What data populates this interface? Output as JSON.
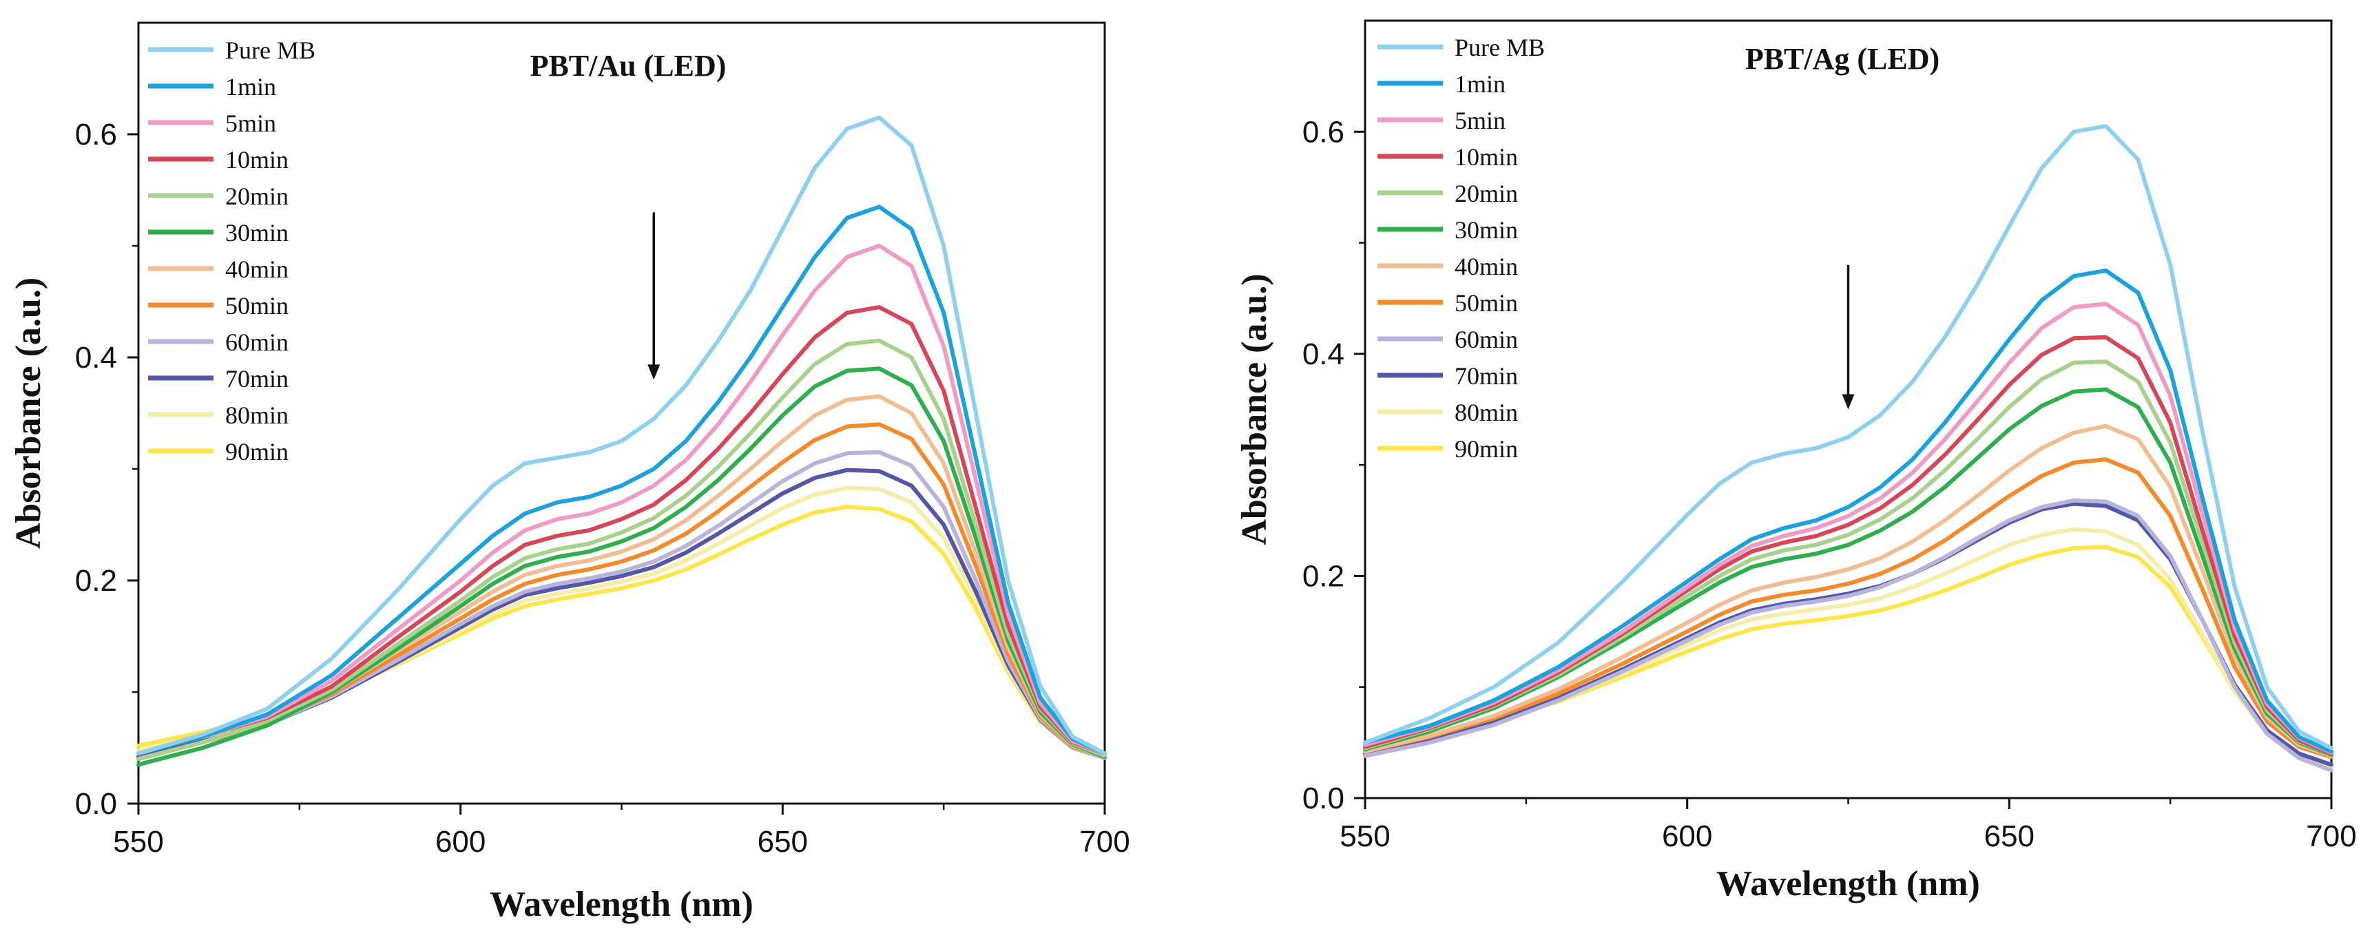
{
  "chart_data": [
    {
      "type": "line",
      "title": "PBT/Au (LED)",
      "xlabel": "Wavelength (nm)",
      "ylabel": "Absorbance (a.u.)",
      "xlim": [
        550,
        700
      ],
      "ylim": [
        0,
        0.7
      ],
      "xticks": [
        "550",
        "600",
        "650",
        "700"
      ],
      "yticks": [
        "0.0",
        "0.2",
        "0.4",
        "0.6"
      ],
      "legend_position": "top-left",
      "grid": false,
      "annotation": "downward arrow at 630 nm from 0.53 to 0.38",
      "arrow": {
        "x": 630,
        "y_from": 0.53,
        "y_to": 0.38
      },
      "x": [
        550,
        560,
        570,
        580,
        590,
        600,
        605,
        610,
        615,
        620,
        625,
        630,
        635,
        640,
        645,
        650,
        655,
        660,
        665,
        670,
        675,
        680,
        685,
        690,
        695,
        700
      ],
      "series": [
        {
          "name": "Pure MB",
          "color": "#8fd0ef",
          "values": [
            0.045,
            0.062,
            0.085,
            0.13,
            0.19,
            0.255,
            0.285,
            0.305,
            0.31,
            0.315,
            0.325,
            0.345,
            0.375,
            0.415,
            0.46,
            0.515,
            0.57,
            0.605,
            0.615,
            0.59,
            0.5,
            0.35,
            0.2,
            0.105,
            0.06,
            0.045
          ]
        },
        {
          "name": "1min",
          "color": "#1ba1dc",
          "values": [
            0.045,
            0.06,
            0.08,
            0.115,
            0.165,
            0.215,
            0.24,
            0.26,
            0.27,
            0.275,
            0.285,
            0.3,
            0.325,
            0.36,
            0.4,
            0.445,
            0.49,
            0.525,
            0.535,
            0.515,
            0.44,
            0.31,
            0.18,
            0.095,
            0.058,
            0.045
          ]
        },
        {
          "name": "5min",
          "color": "#f09ac6",
          "values": [
            0.045,
            0.06,
            0.078,
            0.11,
            0.155,
            0.2,
            0.225,
            0.245,
            0.255,
            0.26,
            0.27,
            0.285,
            0.308,
            0.34,
            0.378,
            0.42,
            0.46,
            0.49,
            0.5,
            0.482,
            0.41,
            0.29,
            0.17,
            0.09,
            0.056,
            0.045
          ]
        },
        {
          "name": "10min",
          "color": "#d94558",
          "values": [
            0.045,
            0.06,
            0.077,
            0.105,
            0.148,
            0.19,
            0.213,
            0.232,
            0.24,
            0.245,
            0.255,
            0.268,
            0.29,
            0.318,
            0.35,
            0.385,
            0.418,
            0.44,
            0.445,
            0.43,
            0.37,
            0.265,
            0.16,
            0.087,
            0.055,
            0.045
          ]
        },
        {
          "name": "20min",
          "color": "#a8d18d",
          "values": [
            0.04,
            0.055,
            0.074,
            0.102,
            0.142,
            0.182,
            0.203,
            0.22,
            0.228,
            0.233,
            0.243,
            0.256,
            0.276,
            0.302,
            0.332,
            0.364,
            0.394,
            0.412,
            0.415,
            0.4,
            0.345,
            0.25,
            0.152,
            0.085,
            0.054,
            0.043
          ]
        },
        {
          "name": "30min",
          "color": "#2fae4e",
          "values": [
            0.035,
            0.05,
            0.07,
            0.1,
            0.138,
            0.177,
            0.197,
            0.213,
            0.221,
            0.226,
            0.235,
            0.247,
            0.266,
            0.29,
            0.318,
            0.348,
            0.374,
            0.388,
            0.39,
            0.375,
            0.325,
            0.238,
            0.146,
            0.082,
            0.053,
            0.042
          ]
        },
        {
          "name": "40min",
          "color": "#f1be93",
          "values": [
            0.04,
            0.055,
            0.073,
            0.1,
            0.136,
            0.172,
            0.19,
            0.205,
            0.213,
            0.218,
            0.226,
            0.237,
            0.254,
            0.276,
            0.3,
            0.325,
            0.348,
            0.362,
            0.365,
            0.35,
            0.305,
            0.225,
            0.14,
            0.08,
            0.052,
            0.042
          ]
        },
        {
          "name": "50min",
          "color": "#f58a2d",
          "values": [
            0.04,
            0.055,
            0.072,
            0.098,
            0.132,
            0.166,
            0.183,
            0.197,
            0.205,
            0.21,
            0.217,
            0.227,
            0.242,
            0.262,
            0.284,
            0.306,
            0.326,
            0.338,
            0.34,
            0.327,
            0.286,
            0.213,
            0.134,
            0.078,
            0.051,
            0.042
          ]
        },
        {
          "name": "60min",
          "color": "#b9b4dc",
          "values": [
            0.04,
            0.055,
            0.071,
            0.096,
            0.128,
            0.161,
            0.177,
            0.19,
            0.197,
            0.202,
            0.208,
            0.217,
            0.231,
            0.249,
            0.269,
            0.289,
            0.305,
            0.314,
            0.315,
            0.303,
            0.266,
            0.2,
            0.128,
            0.076,
            0.05,
            0.041
          ]
        },
        {
          "name": "70min",
          "color": "#5457a6",
          "values": [
            0.042,
            0.056,
            0.071,
            0.095,
            0.126,
            0.158,
            0.174,
            0.187,
            0.193,
            0.198,
            0.204,
            0.212,
            0.225,
            0.242,
            0.26,
            0.278,
            0.292,
            0.299,
            0.298,
            0.285,
            0.25,
            0.19,
            0.124,
            0.075,
            0.05,
            0.041
          ]
        },
        {
          "name": "80min",
          "color": "#f6eda8",
          "values": [
            0.048,
            0.06,
            0.074,
            0.096,
            0.125,
            0.155,
            0.17,
            0.182,
            0.188,
            0.193,
            0.199,
            0.206,
            0.218,
            0.233,
            0.249,
            0.265,
            0.277,
            0.283,
            0.282,
            0.27,
            0.238,
            0.183,
            0.121,
            0.074,
            0.05,
            0.042
          ]
        },
        {
          "name": "90min",
          "color": "#fde64a",
          "values": [
            0.052,
            0.064,
            0.078,
            0.098,
            0.124,
            0.152,
            0.166,
            0.177,
            0.183,
            0.188,
            0.193,
            0.2,
            0.21,
            0.223,
            0.237,
            0.25,
            0.261,
            0.266,
            0.264,
            0.253,
            0.224,
            0.175,
            0.118,
            0.073,
            0.05,
            0.043
          ]
        }
      ]
    },
    {
      "type": "line",
      "title": "PBT/Ag (LED)",
      "xlabel": "Wavelength (nm)",
      "ylabel": "Absorbance (a.u.)",
      "xlim": [
        550,
        700
      ],
      "ylim": [
        0,
        0.7
      ],
      "xticks": [
        "550",
        "600",
        "650",
        "700"
      ],
      "yticks": [
        "0.0",
        "0.2",
        "0.4",
        "0.6"
      ],
      "legend_position": "top-left",
      "grid": false,
      "annotation": "downward arrow at 625 nm from 0.48 to 0.35",
      "arrow": {
        "x": 625,
        "y_from": 0.48,
        "y_to": 0.35
      },
      "x": [
        550,
        560,
        570,
        580,
        590,
        600,
        605,
        610,
        615,
        620,
        625,
        630,
        635,
        640,
        645,
        650,
        655,
        660,
        665,
        670,
        675,
        680,
        685,
        690,
        695,
        700
      ],
      "series": [
        {
          "name": "Pure MB",
          "color": "#8fd0ef",
          "values": [
            0.05,
            0.072,
            0.1,
            0.14,
            0.195,
            0.255,
            0.283,
            0.302,
            0.31,
            0.315,
            0.325,
            0.345,
            0.375,
            0.415,
            0.462,
            0.515,
            0.567,
            0.6,
            0.605,
            0.575,
            0.48,
            0.33,
            0.19,
            0.1,
            0.06,
            0.045
          ]
        },
        {
          "name": "1min",
          "color": "#1ba1dc",
          "values": [
            0.05,
            0.065,
            0.088,
            0.118,
            0.155,
            0.195,
            0.215,
            0.233,
            0.243,
            0.25,
            0.262,
            0.28,
            0.305,
            0.338,
            0.375,
            0.413,
            0.448,
            0.47,
            0.475,
            0.455,
            0.385,
            0.27,
            0.16,
            0.088,
            0.055,
            0.042
          ]
        },
        {
          "name": "5min",
          "color": "#f09ac6",
          "values": [
            0.048,
            0.064,
            0.086,
            0.115,
            0.15,
            0.19,
            0.21,
            0.227,
            0.236,
            0.243,
            0.254,
            0.27,
            0.293,
            0.323,
            0.357,
            0.392,
            0.423,
            0.442,
            0.445,
            0.426,
            0.362,
            0.256,
            0.153,
            0.085,
            0.054,
            0.041
          ]
        },
        {
          "name": "10min",
          "color": "#d94558",
          "values": [
            0.046,
            0.063,
            0.084,
            0.113,
            0.148,
            0.187,
            0.206,
            0.222,
            0.23,
            0.236,
            0.246,
            0.261,
            0.282,
            0.309,
            0.34,
            0.372,
            0.399,
            0.414,
            0.415,
            0.396,
            0.338,
            0.241,
            0.146,
            0.082,
            0.052,
            0.04
          ]
        },
        {
          "name": "20min",
          "color": "#a8d18d",
          "values": [
            0.045,
            0.062,
            0.083,
            0.111,
            0.145,
            0.182,
            0.2,
            0.215,
            0.223,
            0.228,
            0.237,
            0.251,
            0.27,
            0.295,
            0.323,
            0.352,
            0.377,
            0.392,
            0.393,
            0.375,
            0.32,
            0.23,
            0.14,
            0.079,
            0.051,
            0.04
          ]
        },
        {
          "name": "30min",
          "color": "#2fae4e",
          "values": [
            0.044,
            0.06,
            0.081,
            0.109,
            0.142,
            0.177,
            0.194,
            0.208,
            0.215,
            0.22,
            0.228,
            0.241,
            0.258,
            0.28,
            0.306,
            0.332,
            0.353,
            0.366,
            0.368,
            0.352,
            0.302,
            0.218,
            0.134,
            0.076,
            0.05,
            0.039
          ]
        },
        {
          "name": "40min",
          "color": "#f1be93",
          "values": [
            0.042,
            0.056,
            0.074,
            0.098,
            0.127,
            0.158,
            0.174,
            0.187,
            0.194,
            0.199,
            0.206,
            0.216,
            0.231,
            0.25,
            0.272,
            0.295,
            0.315,
            0.329,
            0.335,
            0.323,
            0.28,
            0.205,
            0.127,
            0.073,
            0.048,
            0.038
          ]
        },
        {
          "name": "50min",
          "color": "#f58a2d",
          "values": [
            0.042,
            0.055,
            0.072,
            0.094,
            0.121,
            0.15,
            0.165,
            0.177,
            0.183,
            0.187,
            0.193,
            0.202,
            0.215,
            0.232,
            0.252,
            0.272,
            0.29,
            0.302,
            0.305,
            0.293,
            0.254,
            0.188,
            0.118,
            0.069,
            0.046,
            0.037
          ]
        },
        {
          "name": "60min",
          "color": "#b9b4dc",
          "values": [
            0.038,
            0.05,
            0.066,
            0.088,
            0.114,
            0.142,
            0.156,
            0.167,
            0.173,
            0.177,
            0.182,
            0.19,
            0.202,
            0.217,
            0.234,
            0.25,
            0.262,
            0.268,
            0.267,
            0.254,
            0.218,
            0.16,
            0.1,
            0.058,
            0.036,
            0.025
          ]
        },
        {
          "name": "70min",
          "color": "#5457a6",
          "values": [
            0.04,
            0.052,
            0.068,
            0.09,
            0.116,
            0.144,
            0.158,
            0.169,
            0.175,
            0.179,
            0.184,
            0.191,
            0.202,
            0.216,
            0.232,
            0.248,
            0.26,
            0.265,
            0.263,
            0.25,
            0.215,
            0.16,
            0.102,
            0.061,
            0.04,
            0.03
          ]
        },
        {
          "name": "80min",
          "color": "#f6eda8",
          "values": [
            0.044,
            0.054,
            0.068,
            0.088,
            0.112,
            0.138,
            0.151,
            0.161,
            0.166,
            0.17,
            0.174,
            0.18,
            0.19,
            0.202,
            0.215,
            0.228,
            0.237,
            0.242,
            0.24,
            0.228,
            0.197,
            0.148,
            0.096,
            0.058,
            0.038,
            0.028
          ]
        },
        {
          "name": "90min",
          "color": "#fde64a",
          "values": [
            0.048,
            0.057,
            0.069,
            0.087,
            0.109,
            0.132,
            0.143,
            0.152,
            0.157,
            0.16,
            0.164,
            0.169,
            0.177,
            0.187,
            0.198,
            0.21,
            0.219,
            0.225,
            0.226,
            0.217,
            0.19,
            0.145,
            0.096,
            0.06,
            0.04,
            0.03
          ]
        }
      ]
    }
  ]
}
